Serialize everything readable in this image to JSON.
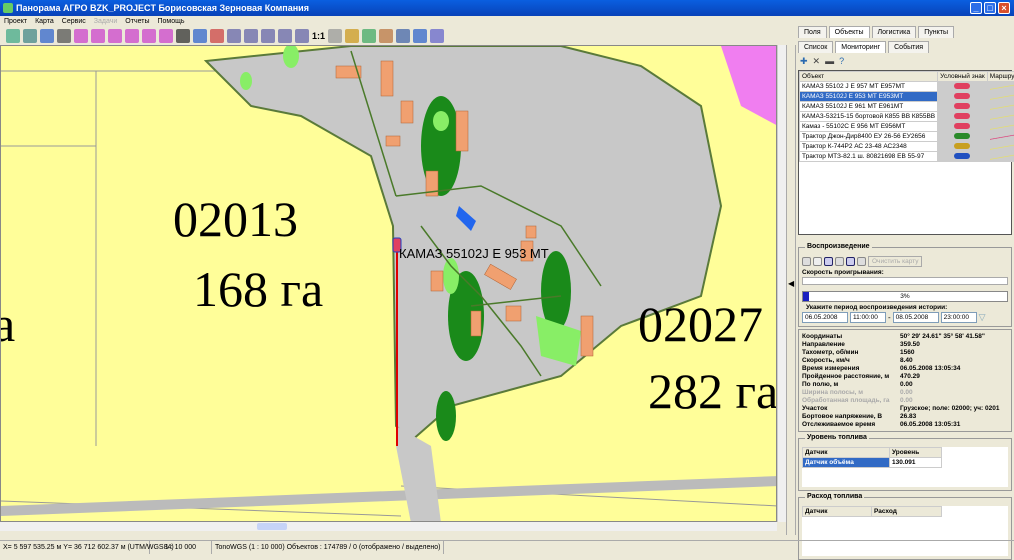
{
  "window": {
    "title": "Панорама АГРО  BZK_PROJECT    Борисовская Зерновая Компания"
  },
  "menu": [
    {
      "label": "Проект",
      "enabled": true
    },
    {
      "label": "Карта",
      "enabled": true
    },
    {
      "label": "Сервис",
      "enabled": true
    },
    {
      "label": "Задачи",
      "enabled": false
    },
    {
      "label": "Отчеты",
      "enabled": true
    },
    {
      "label": "Помощь",
      "enabled": true
    }
  ],
  "toolbar": {
    "scale_label": "1:1"
  },
  "map": {
    "fields": [
      {
        "number": "02013",
        "area": "168 га"
      },
      {
        "number": "02027",
        "area": "282 га"
      }
    ],
    "partial_area": "а",
    "vehicle_label": "КАМАЗ 55102J   Е 953 МТ"
  },
  "panel": {
    "tabs": [
      "Поля",
      "Объекты",
      "Логистика",
      "Пункты"
    ],
    "active_tab": "Объекты",
    "subtabs": [
      "Список",
      "Мониторинг",
      "События"
    ],
    "active_subtab": "Мониторинг",
    "objects": {
      "columns": [
        "Объект",
        "Условный знак",
        "Маршрут"
      ],
      "rows": [
        {
          "name": "КАМАЗ 55102 J  Е 957 МТ Е957МТ",
          "color": "#e04060",
          "route": "#e8e060",
          "selected": false
        },
        {
          "name": "КАМАЗ 55102J   Е 953 МТ Е953МТ",
          "color": "#e04060",
          "route": "#e8e060",
          "selected": true
        },
        {
          "name": "КАМАЗ 55102J  Е 961 МТ Е961МТ",
          "color": "#e04060",
          "route": "#e8e060",
          "selected": false
        },
        {
          "name": "КАМАЗ-53215-15 бортовой К855 ВВ К855ВВ",
          "color": "#e04060",
          "route": "#e8e060",
          "selected": false
        },
        {
          "name": "Камаз - 55102С Е 956 МТ Е956МТ",
          "color": "#e04060",
          "route": "#e8e060",
          "selected": false
        },
        {
          "name": "Трактор Джон-Дир8400 ЕУ 26-56 ЕУ2656",
          "color": "#2a8a2a",
          "route": "#e03070",
          "selected": false
        },
        {
          "name": "Трактор К-744Р2 АС 23-48 АС2348",
          "color": "#c8a020",
          "route": "#e8e060",
          "selected": false
        },
        {
          "name": "Трактор МТЗ-82.1 ш. 80821698 ЕВ 55-97",
          "color": "#2050c0",
          "route": "#e8e060",
          "selected": false
        }
      ]
    },
    "playback": {
      "title": "Воспроизведение",
      "clear_map": "Очистить карту",
      "speed_label": "Скорость проигрывания:",
      "progress_percent": 3,
      "progress_text": "3%",
      "period_label": "Укажите период воспроизведения истории:",
      "date_from": "06.05.2008",
      "time_from": "11:00:00",
      "dash": "-",
      "date_to": "08.05.2008",
      "time_to": "23:00:00"
    },
    "info": [
      {
        "k": "Координаты",
        "v": "50°  29'  24.61\"     35°  58'  41.58\"",
        "dim": false
      },
      {
        "k": "Направление",
        "v": "359.50",
        "dim": false
      },
      {
        "k": "Тахометр, об/мин",
        "v": "1560",
        "dim": false
      },
      {
        "k": "Скорость, км/ч",
        "v": "8.40",
        "dim": false
      },
      {
        "k": "Время измерения",
        "v": "06.05.2008 13:05:34",
        "dim": false
      },
      {
        "k": "Пройденное расстояние, м",
        "v": "470.29",
        "dim": false
      },
      {
        "k": "По полю, м",
        "v": "0.00",
        "dim": false
      },
      {
        "k": "Ширина полосы, м",
        "v": "0.00",
        "dim": true
      },
      {
        "k": "Обработанная площадь, га",
        "v": "0.00",
        "dim": true
      },
      {
        "k": "Участок",
        "v": "Грузское; поле: 02000; уч: 0201",
        "dim": false
      },
      {
        "k": "Бортовое напряжение, В",
        "v": "26.83",
        "dim": false
      },
      {
        "k": "Отслеживаемое время",
        "v": "06.05.2008 13:05:31",
        "dim": false
      }
    ],
    "fuel_level": {
      "title": "Уровень топлива",
      "columns": [
        "Датчик",
        "Уровень"
      ],
      "rows": [
        {
          "sensor": "Датчик объёма",
          "value": "130.091"
        }
      ]
    },
    "fuel_use": {
      "title": "Расход топлива",
      "columns": [
        "Датчик",
        "Расход"
      ]
    }
  },
  "status": {
    "coords": "X= 5 597 535.25 м   Y= 36 712 602.37 м  (UTM/WGS84)",
    "scale": "1 : 10 000",
    "info": "TonoWGS (1 : 10 000)  Объектов : 174789 / 0 (отображено / выделено)"
  }
}
